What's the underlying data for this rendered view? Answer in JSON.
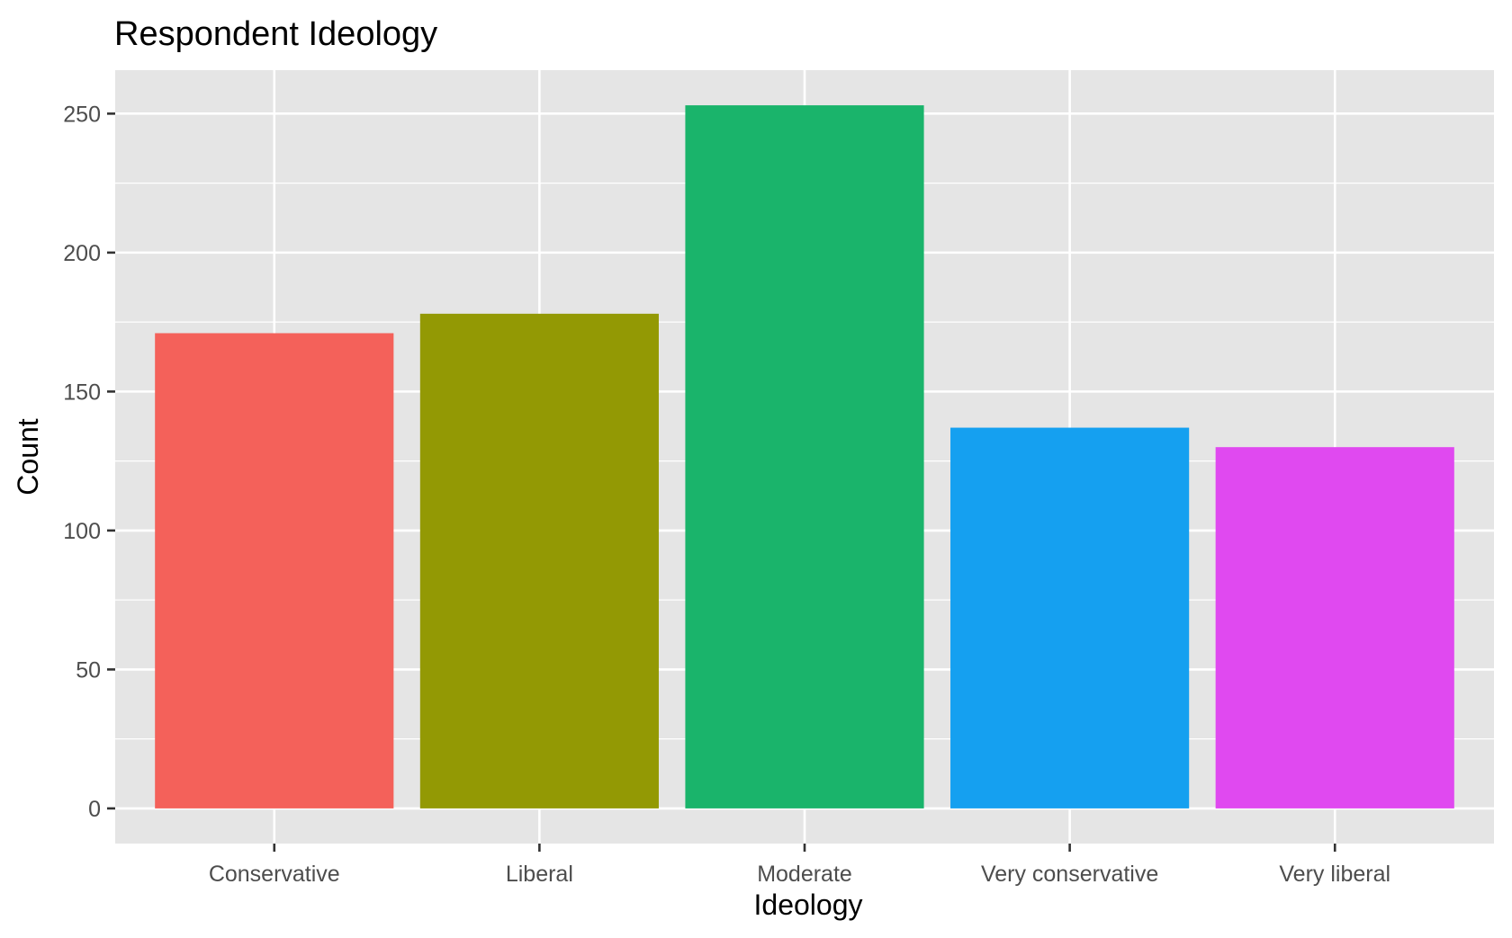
{
  "chart_data": {
    "type": "bar",
    "title": "Respondent Ideology",
    "xlabel": "Ideology",
    "ylabel": "Count",
    "categories": [
      "Conservative",
      "Liberal",
      "Moderate",
      "Very conservative",
      "Very liberal"
    ],
    "values": [
      171,
      178,
      253,
      137,
      130
    ],
    "colors": [
      "#F4615A",
      "#939904",
      "#1AB46B",
      "#15A0F0",
      "#E049F0"
    ],
    "ylim": [
      -12.65,
      265.65
    ],
    "yticks": [
      0,
      50,
      100,
      150,
      200,
      250
    ],
    "grid": true,
    "legend": "none",
    "panel_background": "#E5E5E5",
    "gridline_color": "#FFFFFF"
  }
}
